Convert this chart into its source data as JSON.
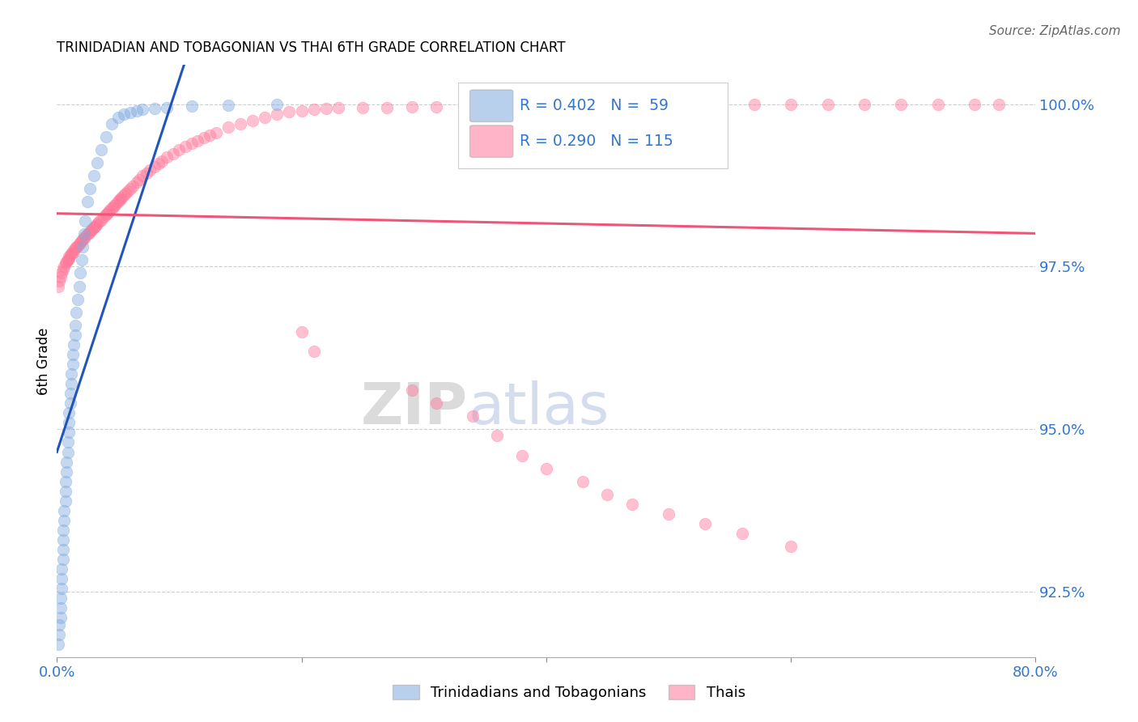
{
  "title": "TRINIDADIAN AND TOBAGONIAN VS THAI 6TH GRADE CORRELATION CHART",
  "source": "Source: ZipAtlas.com",
  "ylabel": "6th Grade",
  "xlim": [
    0.0,
    0.8
  ],
  "ylim": [
    0.915,
    1.006
  ],
  "blue_color": "#7FAADD",
  "pink_color": "#FF7799",
  "blue_line_color": "#2255BB",
  "pink_line_color": "#EE5577",
  "blue_x": [
    0.001,
    0.002,
    0.002,
    0.003,
    0.003,
    0.003,
    0.004,
    0.004,
    0.004,
    0.005,
    0.005,
    0.005,
    0.005,
    0.006,
    0.006,
    0.007,
    0.007,
    0.007,
    0.008,
    0.008,
    0.009,
    0.009,
    0.01,
    0.01,
    0.01,
    0.011,
    0.011,
    0.012,
    0.012,
    0.013,
    0.013,
    0.014,
    0.015,
    0.015,
    0.016,
    0.017,
    0.018,
    0.019,
    0.02,
    0.021,
    0.022,
    0.023,
    0.025,
    0.027,
    0.03,
    0.033,
    0.036,
    0.04,
    0.045,
    0.05,
    0.055,
    0.06,
    0.065,
    0.07,
    0.08,
    0.09,
    0.11,
    0.14,
    0.18
  ],
  "blue_y": [
    0.917,
    0.9185,
    0.92,
    0.921,
    0.9225,
    0.924,
    0.9255,
    0.927,
    0.9285,
    0.93,
    0.9315,
    0.933,
    0.9345,
    0.936,
    0.9375,
    0.939,
    0.9405,
    0.942,
    0.9435,
    0.945,
    0.9465,
    0.948,
    0.9495,
    0.951,
    0.9525,
    0.954,
    0.9555,
    0.957,
    0.9585,
    0.96,
    0.9615,
    0.963,
    0.9645,
    0.966,
    0.968,
    0.97,
    0.972,
    0.974,
    0.976,
    0.978,
    0.98,
    0.982,
    0.985,
    0.987,
    0.989,
    0.991,
    0.993,
    0.995,
    0.997,
    0.998,
    0.9985,
    0.9987,
    0.999,
    0.9992,
    0.9993,
    0.9995,
    0.9997,
    0.9998,
    0.9999
  ],
  "pink_x": [
    0.001,
    0.002,
    0.003,
    0.004,
    0.005,
    0.006,
    0.007,
    0.008,
    0.009,
    0.01,
    0.01,
    0.011,
    0.012,
    0.013,
    0.014,
    0.015,
    0.016,
    0.017,
    0.018,
    0.019,
    0.02,
    0.021,
    0.022,
    0.023,
    0.025,
    0.026,
    0.027,
    0.028,
    0.029,
    0.03,
    0.031,
    0.032,
    0.033,
    0.035,
    0.036,
    0.038,
    0.04,
    0.041,
    0.042,
    0.043,
    0.045,
    0.046,
    0.047,
    0.048,
    0.05,
    0.051,
    0.052,
    0.053,
    0.055,
    0.056,
    0.058,
    0.06,
    0.062,
    0.065,
    0.067,
    0.07,
    0.073,
    0.076,
    0.08,
    0.083,
    0.086,
    0.09,
    0.095,
    0.1,
    0.105,
    0.11,
    0.115,
    0.12,
    0.125,
    0.13,
    0.14,
    0.15,
    0.16,
    0.17,
    0.18,
    0.19,
    0.2,
    0.21,
    0.22,
    0.23,
    0.25,
    0.27,
    0.29,
    0.31,
    0.34,
    0.36,
    0.39,
    0.42,
    0.45,
    0.48,
    0.51,
    0.54,
    0.57,
    0.6,
    0.63,
    0.66,
    0.69,
    0.72,
    0.75,
    0.77,
    0.2,
    0.21,
    0.29,
    0.31,
    0.34,
    0.36,
    0.38,
    0.4,
    0.43,
    0.45,
    0.47,
    0.5,
    0.53,
    0.56,
    0.6
  ],
  "pink_y": [
    0.972,
    0.9728,
    0.9735,
    0.974,
    0.9745,
    0.975,
    0.9755,
    0.9758,
    0.976,
    0.9762,
    0.9765,
    0.9768,
    0.977,
    0.9772,
    0.9775,
    0.9778,
    0.978,
    0.9782,
    0.9785,
    0.9787,
    0.979,
    0.9792,
    0.9794,
    0.9796,
    0.98,
    0.9802,
    0.9804,
    0.9806,
    0.9808,
    0.981,
    0.9812,
    0.9814,
    0.9816,
    0.982,
    0.9822,
    0.9826,
    0.983,
    0.9832,
    0.9834,
    0.9836,
    0.984,
    0.9842,
    0.9844,
    0.9846,
    0.985,
    0.9852,
    0.9854,
    0.9856,
    0.986,
    0.9862,
    0.9866,
    0.987,
    0.9874,
    0.988,
    0.9884,
    0.989,
    0.9894,
    0.9898,
    0.9904,
    0.9908,
    0.9912,
    0.9918,
    0.9924,
    0.993,
    0.9935,
    0.994,
    0.9944,
    0.9948,
    0.9952,
    0.9956,
    0.9964,
    0.997,
    0.9975,
    0.998,
    0.9984,
    0.9988,
    0.999,
    0.9992,
    0.9993,
    0.9994,
    0.9995,
    0.9995,
    0.9996,
    0.9996,
    0.9997,
    0.9997,
    0.9997,
    0.9998,
    0.9998,
    0.9998,
    0.9999,
    0.9999,
    0.9999,
    0.9999,
    0.9999,
    0.9999,
    0.9999,
    0.9999,
    1.0,
    1.0,
    0.965,
    0.962,
    0.956,
    0.954,
    0.952,
    0.949,
    0.946,
    0.944,
    0.942,
    0.94,
    0.9385,
    0.937,
    0.9355,
    0.934,
    0.932
  ]
}
